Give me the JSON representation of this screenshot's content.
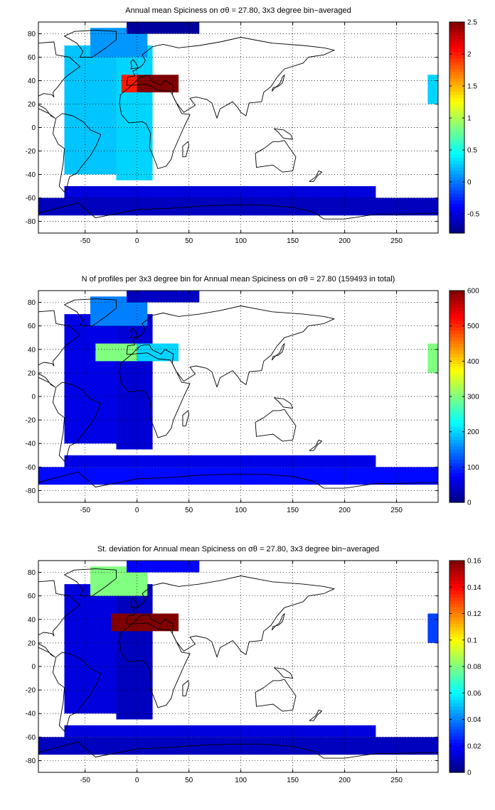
{
  "chart_data": [
    {
      "type": "heatmap",
      "title": "Annual mean Spiciness on σθ = 27.80, 3x3 degree bin−averaged",
      "xlim": [
        -95,
        290
      ],
      "ylim": [
        -90,
        90
      ],
      "x_ticks": [
        -50,
        0,
        50,
        100,
        150,
        200,
        250
      ],
      "y_ticks": [
        80,
        60,
        40,
        20,
        0,
        -20,
        -40,
        -60,
        -80
      ],
      "grid": true,
      "colormap": "jet",
      "colorbar": {
        "range": [
          -0.8,
          2.5
        ],
        "ticks": [
          -0.5,
          0,
          0.5,
          1,
          1.5,
          2,
          2.5
        ]
      },
      "regions": [
        {
          "lon": [
            -70,
            -20
          ],
          "lat": [
            -40,
            70
          ],
          "value": 0.25
        },
        {
          "lon": [
            -20,
            15
          ],
          "lat": [
            -45,
            70
          ],
          "value": 0.3
        },
        {
          "lon": [
            -45,
            10
          ],
          "lat": [
            60,
            85
          ],
          "value": 0.1
        },
        {
          "lon": [
            -15,
            0
          ],
          "lat": [
            30,
            45
          ],
          "value": 2.0
        },
        {
          "lon": [
            0,
            40
          ],
          "lat": [
            30,
            45
          ],
          "value": 2.5
        },
        {
          "lon": [
            -95,
            290
          ],
          "lat": [
            -75,
            -60
          ],
          "value": -0.6
        },
        {
          "lon": [
            -70,
            230
          ],
          "lat": [
            -60,
            -50
          ],
          "value": -0.5
        },
        {
          "lon": [
            280,
            290
          ],
          "lat": [
            20,
            45
          ],
          "value": 0.3
        },
        {
          "lon": [
            -10,
            60
          ],
          "lat": [
            80,
            90
          ],
          "value": -0.7
        }
      ]
    },
    {
      "type": "heatmap",
      "title": "N of profiles per 3x3 degree bin for Annual mean Spiciness on σθ = 27.80 (159493 in total)",
      "xlim": [
        -95,
        290
      ],
      "ylim": [
        -90,
        90
      ],
      "x_ticks": [
        -50,
        0,
        50,
        100,
        150,
        200,
        250
      ],
      "y_ticks": [
        80,
        60,
        40,
        20,
        0,
        -20,
        -40,
        -60,
        -80
      ],
      "grid": true,
      "colormap": "jet",
      "colorbar": {
        "range": [
          0,
          600
        ],
        "ticks": [
          0,
          100,
          200,
          300,
          400,
          500,
          600
        ]
      },
      "regions": [
        {
          "lon": [
            -70,
            -20
          ],
          "lat": [
            -40,
            70
          ],
          "value": 60
        },
        {
          "lon": [
            -20,
            15
          ],
          "lat": [
            -45,
            70
          ],
          "value": 50
        },
        {
          "lon": [
            -45,
            10
          ],
          "lat": [
            60,
            85
          ],
          "value": 150
        },
        {
          "lon": [
            -40,
            0
          ],
          "lat": [
            30,
            45
          ],
          "value": 300
        },
        {
          "lon": [
            0,
            40
          ],
          "lat": [
            30,
            45
          ],
          "value": 200
        },
        {
          "lon": [
            -95,
            290
          ],
          "lat": [
            -75,
            -60
          ],
          "value": 80
        },
        {
          "lon": [
            -70,
            230
          ],
          "lat": [
            -60,
            -50
          ],
          "value": 60
        },
        {
          "lon": [
            280,
            290
          ],
          "lat": [
            20,
            45
          ],
          "value": 300
        },
        {
          "lon": [
            -10,
            60
          ],
          "lat": [
            80,
            90
          ],
          "value": 40
        }
      ]
    },
    {
      "type": "heatmap",
      "title": "St. deviation for Annual mean Spiciness on σθ = 27.80, 3x3 degree bin−averaged",
      "xlim": [
        -95,
        290
      ],
      "ylim": [
        -90,
        90
      ],
      "x_ticks": [
        -50,
        0,
        50,
        100,
        150,
        200,
        250
      ],
      "y_ticks": [
        80,
        60,
        40,
        20,
        0,
        -20,
        -40,
        -60,
        -80
      ],
      "grid": true,
      "colormap": "jet",
      "colorbar": {
        "range": [
          0,
          0.16
        ],
        "ticks": [
          0,
          0.02,
          0.04,
          0.06,
          0.08,
          0.1,
          0.12,
          0.14,
          0.16
        ]
      },
      "regions": [
        {
          "lon": [
            -70,
            -20
          ],
          "lat": [
            -40,
            70
          ],
          "value": 0.015
        },
        {
          "lon": [
            -20,
            15
          ],
          "lat": [
            -45,
            70
          ],
          "value": 0.01
        },
        {
          "lon": [
            -45,
            10
          ],
          "lat": [
            60,
            85
          ],
          "value": 0.08
        },
        {
          "lon": [
            -25,
            5
          ],
          "lat": [
            30,
            45
          ],
          "value": 0.16
        },
        {
          "lon": [
            5,
            40
          ],
          "lat": [
            30,
            45
          ],
          "value": 0.16
        },
        {
          "lon": [
            -95,
            290
          ],
          "lat": [
            -75,
            -60
          ],
          "value": 0.01
        },
        {
          "lon": [
            -70,
            230
          ],
          "lat": [
            -60,
            -50
          ],
          "value": 0.015
        },
        {
          "lon": [
            280,
            290
          ],
          "lat": [
            20,
            45
          ],
          "value": 0.03
        },
        {
          "lon": [
            -10,
            60
          ],
          "lat": [
            80,
            90
          ],
          "value": 0.02
        }
      ]
    }
  ]
}
